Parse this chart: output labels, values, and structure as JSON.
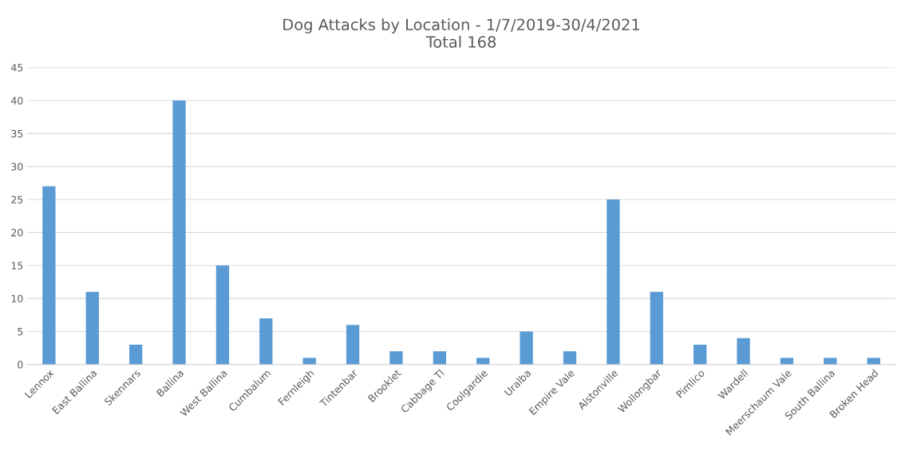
{
  "chart_data": {
    "type": "bar",
    "title": "Dog Attacks by Location - 1/7/2019-30/4/2021\nTotal 168",
    "categories": [
      "Lennox",
      "East Ballina",
      "Skennars",
      "Ballina",
      "West Ballina",
      "Cumbalum",
      "Fernleigh",
      "Tintenbar",
      "Brooklet",
      "Cabbage Tl",
      "Coolgardie",
      "Uralba",
      "Empire Vale",
      "Alstonville",
      "Wollongbar",
      "Pimlico",
      "Wardell",
      "Meerschaum Vale",
      "South Ballina",
      "Broken Head"
    ],
    "values": [
      27,
      11,
      3,
      40,
      15,
      7,
      1,
      6,
      2,
      2,
      1,
      5,
      2,
      25,
      11,
      3,
      4,
      1,
      1,
      1
    ],
    "color": "#5b9bd5",
    "ylim": [
      0,
      45
    ],
    "yticks": [
      0,
      5,
      10,
      15,
      20,
      25,
      30,
      35,
      40,
      45
    ],
    "grid": "y"
  }
}
